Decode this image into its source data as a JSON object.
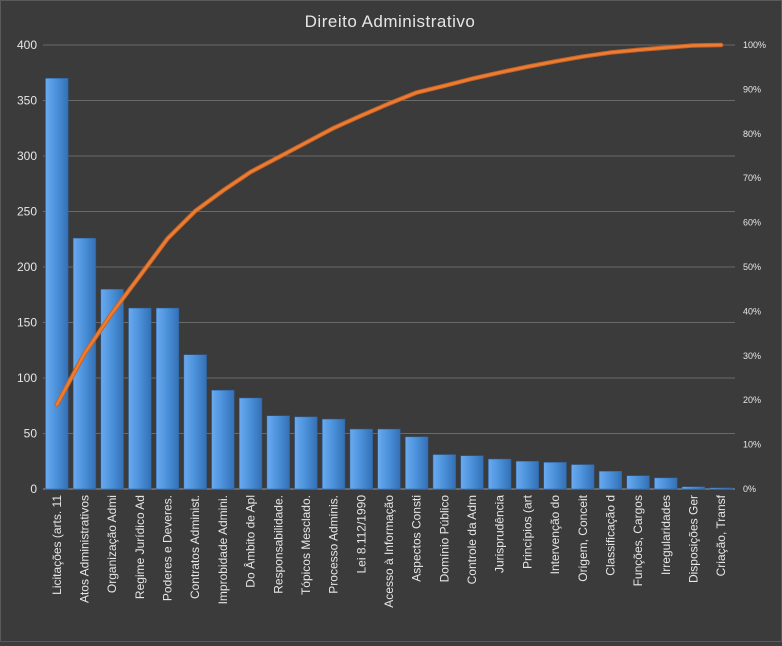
{
  "chart_data": {
    "type": "bar",
    "title": "Direito Administrativo",
    "categories": [
      "Licitações (arts. 11",
      "Atos Administrativos",
      "Organização Admi",
      "Regime Jurídico Ad",
      "Poderes e Deveres.",
      "Contratos Administ.",
      "Improbidade Admini.",
      "Do Âmbito de Apl",
      "Responsabilidade.",
      "Tópicos Mesclado.",
      "Processo Adminis.",
      "Lei 8.112/1990",
      "Acesso à Informação",
      "Aspectos Consti",
      "Domínio Público",
      "Controle da Adm",
      "Jurisprudência",
      "Princípios (art",
      "Intervenção do",
      "Origem, Conceit",
      "Classificação d",
      "Funções, Cargos",
      "Irregularidades",
      "Disposições Ger",
      "Criação, Transf"
    ],
    "series": [
      {
        "type": "bar",
        "color": "#4a90d9",
        "values": [
          370,
          226,
          180,
          163,
          163,
          121,
          89,
          82,
          66,
          65,
          63,
          54,
          54,
          47,
          31,
          30,
          27,
          25,
          24,
          22,
          16,
          12,
          10,
          2,
          1
        ]
      },
      {
        "type": "line",
        "color": "#ed7d31",
        "axis": "right",
        "values": [
          0.19,
          0.305,
          0.397,
          0.48,
          0.564,
          0.626,
          0.672,
          0.714,
          0.747,
          0.78,
          0.813,
          0.841,
          0.868,
          0.893,
          0.908,
          0.924,
          0.938,
          0.951,
          0.963,
          0.974,
          0.983,
          0.989,
          0.994,
          0.999,
          1.0
        ]
      }
    ],
    "ylim": [
      0,
      400
    ],
    "yticks": [
      0,
      50,
      100,
      150,
      200,
      250,
      300,
      350,
      400
    ],
    "y2lim": [
      0,
      1
    ],
    "y2ticks": [
      "0%",
      "10%",
      "20%",
      "30%",
      "40%",
      "50%",
      "60%",
      "70%",
      "80%",
      "90%",
      "100%"
    ],
    "grid": true,
    "legend": "none"
  }
}
